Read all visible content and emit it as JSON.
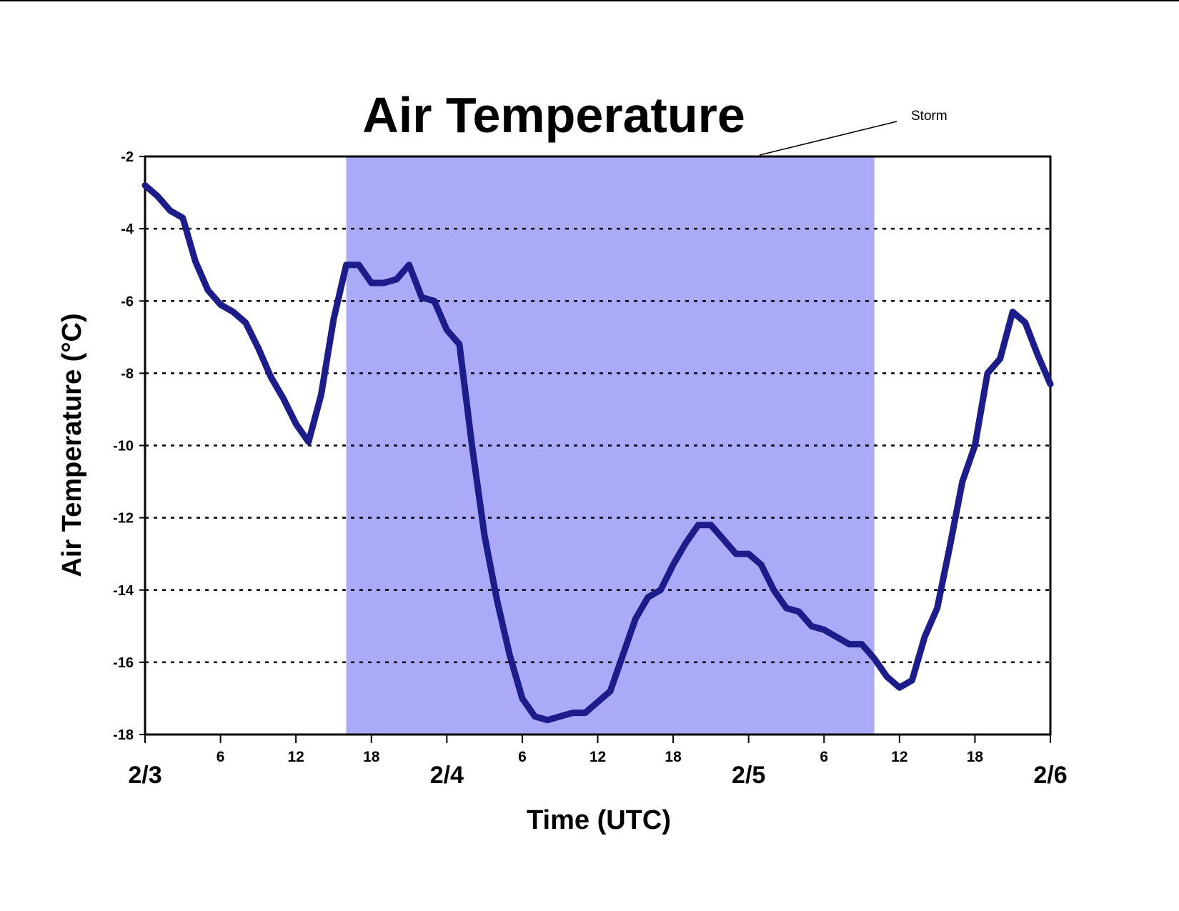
{
  "chart_data": {
    "type": "line",
    "title": "Air Temperature",
    "xlabel": "Time (UTC)",
    "ylabel": "Air Temperature (°C)",
    "x": [
      0,
      1,
      2,
      3,
      4,
      5,
      6,
      7,
      8,
      9,
      10,
      11,
      12,
      13,
      14,
      15,
      16,
      17,
      18,
      19,
      20,
      21,
      22,
      23,
      24,
      25,
      26,
      27,
      28,
      29,
      30,
      31,
      32,
      33,
      34,
      35,
      36,
      37,
      38,
      39,
      40,
      41,
      42,
      43,
      44,
      45,
      46,
      47,
      48,
      49,
      50,
      51,
      52,
      53,
      54,
      55,
      56,
      57,
      58,
      59,
      60,
      61,
      62,
      63,
      64,
      65,
      66,
      67,
      68,
      69,
      70,
      71,
      72
    ],
    "series": [
      {
        "name": "Air Temperature",
        "color": "#1c1c8a",
        "values": [
          -2.8,
          -3.1,
          -3.5,
          -3.7,
          -4.9,
          -5.7,
          -6.1,
          -6.3,
          -6.6,
          -7.3,
          -8.1,
          -8.7,
          -9.4,
          -9.9,
          -8.6,
          -6.5,
          -5.0,
          -5.0,
          -5.5,
          -5.5,
          -5.4,
          -5.0,
          -5.9,
          -6.0,
          -6.8,
          -7.2,
          -10.0,
          -12.5,
          -14.3,
          -15.8,
          -17.0,
          -17.5,
          -17.6,
          -17.5,
          -17.4,
          -17.4,
          -17.1,
          -16.8,
          -15.8,
          -14.8,
          -14.2,
          -14.0,
          -13.3,
          -12.7,
          -12.2,
          -12.2,
          -12.6,
          -13.0,
          -13.0,
          -13.3,
          -14.0,
          -14.5,
          -14.6,
          -15.0,
          -15.1,
          -15.3,
          -15.5,
          -15.5,
          -15.9,
          -16.4,
          -16.7,
          -16.5,
          -15.3,
          -14.5,
          -12.8,
          -11.0,
          -10.0,
          -8.0,
          -7.6,
          -6.3,
          -6.6,
          -7.5,
          -8.3
        ]
      }
    ],
    "xlim": [
      0,
      72
    ],
    "xticks": [
      {
        "value": 0,
        "label": "2/3"
      },
      6,
      12,
      18,
      {
        "value": 24,
        "label": "2/4"
      },
      {
        "value": 30,
        "label": "6"
      },
      {
        "value": 36,
        "label": "12"
      },
      {
        "value": 42,
        "label": "18"
      },
      {
        "value": 48,
        "label": "2/5"
      },
      {
        "value": 54,
        "label": "6"
      },
      {
        "value": 60,
        "label": "12"
      },
      {
        "value": 66,
        "label": "18"
      },
      {
        "value": 72,
        "label": "2/6"
      }
    ],
    "ylim": [
      -18,
      -2
    ],
    "yticks": [
      -2,
      -4,
      -6,
      -8,
      -10,
      -12,
      -14,
      -16,
      -18
    ],
    "grid": true,
    "shaded_region": {
      "label": "Storm",
      "xlim": [
        16,
        58
      ],
      "color": "#aaaaf8"
    }
  }
}
